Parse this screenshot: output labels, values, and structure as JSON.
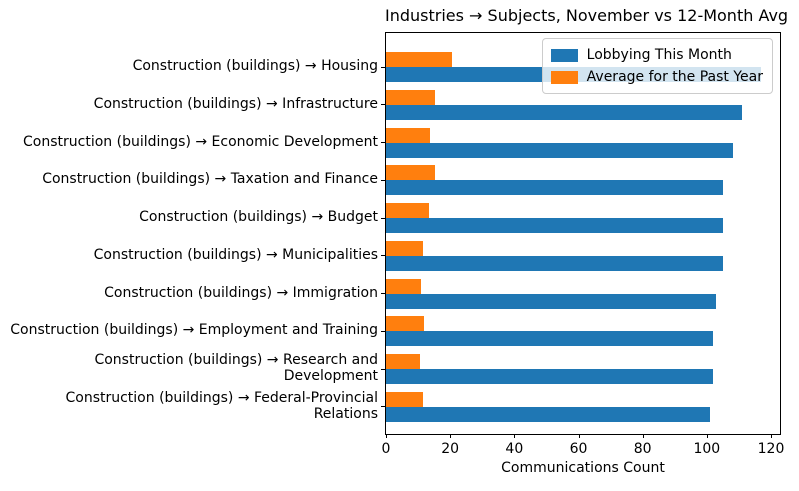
{
  "title": "Industries → Subjects, November vs 12-Month Avg",
  "chart_data": {
    "type": "bar",
    "orientation": "horizontal",
    "title": "Industries → Subjects, November vs 12-Month Avg",
    "xlabel": "Communications Count",
    "ylabel": "",
    "grid": false,
    "legend_position": "upper right",
    "xlim": [
      0,
      122.8
    ],
    "xticks": [
      0,
      20,
      40,
      60,
      80,
      100,
      120
    ],
    "categories": [
      "Construction (buildings) → Housing",
      "Construction (buildings) → Infrastructure",
      "Construction (buildings) → Economic Development",
      "Construction (buildings) → Taxation and Finance",
      "Construction (buildings) → Budget",
      "Construction (buildings) → Municipalities",
      "Construction (buildings) → Immigration",
      "Construction (buildings) → Employment and Training",
      "Construction (buildings) → Research and\nDevelopment",
      "Construction (buildings) → Federal-Provincial\nRelations"
    ],
    "series": [
      {
        "name": "Lobbying This Month",
        "color": "#1f77b4",
        "values": [
          117,
          111,
          108,
          105,
          105,
          105,
          103,
          102,
          102,
          101
        ]
      },
      {
        "name": "Average for the Past Year",
        "color": "#ff7f0e",
        "values": [
          20.5,
          15.4,
          13.6,
          15.3,
          13.5,
          11.5,
          10.9,
          11.8,
          10.6,
          11.4
        ]
      }
    ]
  }
}
